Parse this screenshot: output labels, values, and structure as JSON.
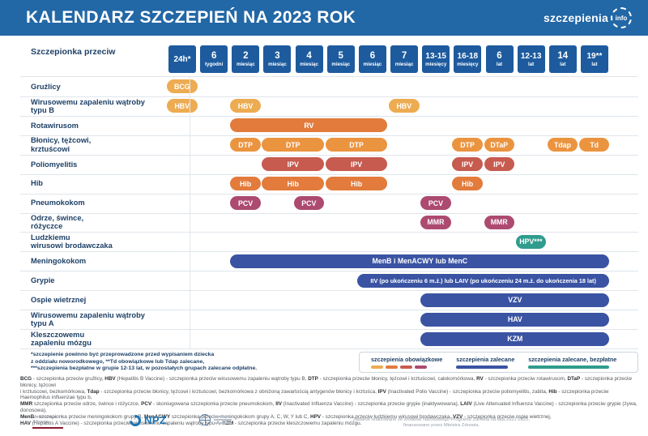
{
  "header": {
    "title": "KALENDARZ SZCZEPIEŃ NA 2023 ROK",
    "logo_text": "szczepienia",
    "logo_badge": "info"
  },
  "colors": {
    "header_bar": "#2267A6",
    "header_box": "#1D5B9E",
    "label_navy": "#1D4066",
    "amber": "#EDAB52",
    "dtp_orange": "#EB9440",
    "orange": "#E27B3B",
    "brick": "#C75B50",
    "plum": "#AC4A70",
    "blue": "#3A53A3",
    "teal": "#2F9C8D"
  },
  "table": {
    "corner": {
      "line1": "Szczepionka",
      "line2": "przeciw"
    },
    "columns": [
      {
        "num": "24h*",
        "unit": ""
      },
      {
        "num": "6",
        "unit": "tygodni"
      },
      {
        "num": "2",
        "unit": "miesiąc"
      },
      {
        "num": "3",
        "unit": "miesiąc"
      },
      {
        "num": "4",
        "unit": "miesiąc"
      },
      {
        "num": "5",
        "unit": "miesiąc"
      },
      {
        "num": "6",
        "unit": "miesiąc"
      },
      {
        "num": "7",
        "unit": "miesiąc"
      },
      {
        "num": "13-15",
        "unit": "miesięcy"
      },
      {
        "num": "16-18",
        "unit": "miesięcy"
      },
      {
        "num": "6",
        "unit": "lat"
      },
      {
        "num": "12-13",
        "unit": "lat"
      },
      {
        "num": "14",
        "unit": "lat"
      },
      {
        "num": "19**",
        "unit": "lat"
      }
    ],
    "rows": [
      {
        "label": [
          "Gruźlicy"
        ],
        "pills": [
          {
            "text": "BCG",
            "col": 0,
            "span": 1,
            "color": "amber"
          }
        ]
      },
      {
        "label": [
          "Wirusowemu zapaleniu wątroby",
          "typu B"
        ],
        "pills": [
          {
            "text": "HBV",
            "col": 0,
            "span": 1,
            "color": "amber"
          },
          {
            "text": "HBV",
            "col": 2,
            "span": 1,
            "color": "amber"
          },
          {
            "text": "HBV",
            "col": 7,
            "span": 1,
            "color": "amber"
          }
        ]
      },
      {
        "label": [
          "Rotawirusom"
        ],
        "pills": [
          {
            "text": "RV",
            "col": 2,
            "span": 5,
            "color": "orange"
          }
        ]
      },
      {
        "label": [
          "Błonicy, tężcowi,",
          "krztuścowi"
        ],
        "pills": [
          {
            "text": "DTP",
            "col": 2,
            "span": 1,
            "color": "dtp_orange"
          },
          {
            "text": "DTP",
            "col": 3,
            "span": 2,
            "color": "dtp_orange"
          },
          {
            "text": "DTP",
            "col": 5,
            "span": 2,
            "color": "dtp_orange"
          },
          {
            "text": "DTP",
            "col": 9,
            "span": 1,
            "color": "dtp_orange"
          },
          {
            "text": "DTaP",
            "col": 10,
            "span": 1,
            "color": "dtp_orange"
          },
          {
            "text": "Tdap",
            "col": 12,
            "span": 1,
            "color": "dtp_orange"
          },
          {
            "text": "Td",
            "col": 13,
            "span": 1,
            "color": "dtp_orange"
          }
        ]
      },
      {
        "label": [
          "Poliomyelitis"
        ],
        "pills": [
          {
            "text": "IPV",
            "col": 3,
            "span": 2,
            "color": "brick"
          },
          {
            "text": "IPV",
            "col": 5,
            "span": 2,
            "color": "brick"
          },
          {
            "text": "IPV",
            "col": 9,
            "span": 1,
            "color": "brick"
          },
          {
            "text": "IPV",
            "col": 10,
            "span": 1,
            "color": "brick"
          }
        ]
      },
      {
        "label": [
          "Hib"
        ],
        "pills": [
          {
            "text": "Hib",
            "col": 2,
            "span": 1,
            "color": "orange"
          },
          {
            "text": "Hib",
            "col": 3,
            "span": 2,
            "color": "orange"
          },
          {
            "text": "Hib",
            "col": 5,
            "span": 2,
            "color": "orange"
          },
          {
            "text": "Hib",
            "col": 9,
            "span": 1,
            "color": "orange"
          }
        ]
      },
      {
        "label": [
          "Pneumokokom"
        ],
        "pills": [
          {
            "text": "PCV",
            "col": 2,
            "span": 1,
            "color": "plum"
          },
          {
            "text": "PCV",
            "col": 4,
            "span": 1,
            "color": "plum"
          },
          {
            "text": "PCV",
            "col": 8,
            "span": 1,
            "color": "plum"
          }
        ]
      },
      {
        "label": [
          "Odrze, śwince,",
          "różyczce"
        ],
        "pills": [
          {
            "text": "MMR",
            "col": 8,
            "span": 1,
            "color": "plum"
          },
          {
            "text": "MMR",
            "col": 10,
            "span": 1,
            "color": "plum"
          }
        ]
      },
      {
        "label": [
          "Ludzkiemu",
          "wirusowi brodawczaka"
        ],
        "pills": [
          {
            "text": "HPV***",
            "col": 11,
            "span": 1,
            "color": "teal"
          }
        ]
      },
      {
        "label": [
          "Meningokokom"
        ],
        "pills": [
          {
            "text": "MenB i MenACWY lub MenC",
            "col": 2,
            "span": 12,
            "color": "blue"
          }
        ]
      },
      {
        "label": [
          "Grypie"
        ],
        "pills": [
          {
            "text": "IIV (po ukończeniu 6 m.ż.) lub LAIV (po ukończeniu 24 m.ż. do ukończenia 18 lat)",
            "col": 6,
            "span": 8,
            "color": "blue"
          }
        ]
      },
      {
        "label": [
          "Ospie wietrznej"
        ],
        "pills": [
          {
            "text": "VZV",
            "col": 8,
            "span": 6,
            "color": "blue"
          }
        ]
      },
      {
        "label": [
          "Wirusowemu zapaleniu wątroby",
          "typu A"
        ],
        "pills": [
          {
            "text": "HAV",
            "col": 8,
            "span": 6,
            "color": "blue"
          }
        ]
      },
      {
        "label": [
          "Kleszczowemu",
          "zapaleniu mózgu"
        ],
        "pills": [
          {
            "text": "KZM",
            "col": 8,
            "span": 6,
            "color": "blue"
          }
        ]
      }
    ]
  },
  "footnotes": [
    "*szczepienie powinno być przeprowadzone przed wypisaniem dziecka",
    "z oddziału noworodkowego, **Td obowiązkowe lub Tdap zalecane,",
    "***szczepienia bezpłatne w grupie 12-13 lat, w pozostałych grupach zalecane odpłatne."
  ],
  "legend": {
    "groups": [
      {
        "label": "szczepienia obowiązkowe",
        "swatch_colors": [
          "amber",
          "orange",
          "brick",
          "plum"
        ],
        "swatch_width": 15
      },
      {
        "label": "szczepienia zalecane",
        "swatch_colors": [
          "blue"
        ],
        "swatch_width": 64
      },
      {
        "label": "szczepienia zalecane, bezpłatne",
        "swatch_colors": [
          "teal"
        ],
        "swatch_width": 100
      }
    ]
  },
  "abbreviations": [
    [
      {
        "t": "BCG",
        "b": 1
      },
      {
        "t": " - szczepionka przeciw gruźlicy,  ",
        "b": 0
      },
      {
        "t": "HBV",
        "b": 1
      },
      {
        "t": " (Hepatitis B Vaccine) - szczepionka przeciw wirusowemu zapaleniu wątroby typu B,  ",
        "b": 0
      },
      {
        "t": "DTP",
        "b": 1
      },
      {
        "t": " - szczepionka przeciw błonicy, tężcowi i krztuścowi, całokomórkowa,  ",
        "b": 0
      },
      {
        "t": "RV",
        "b": 1
      },
      {
        "t": " - szczepionka przeciw rotawirusom,  ",
        "b": 0
      },
      {
        "t": "DTaP",
        "b": 1
      },
      {
        "t": " - szczepionka przeciw błonicy, tężcowi",
        "b": 0
      }
    ],
    [
      {
        "t": "i krztuścowi, bezkomórkowa,  ",
        "b": 0
      },
      {
        "t": "Tdap",
        "b": 1
      },
      {
        "t": " - szczepionka przeciw błonicy, tężcowi i krztuścowi, bezkomórkowa z obniżoną zawartością antygenów błonicy i krztuśca,  ",
        "b": 0
      },
      {
        "t": "IPV",
        "b": 1
      },
      {
        "t": " (Inactivated Polio Vaccine) - szczepionka przeciw poliomyelitis, zabita,  ",
        "b": 0
      },
      {
        "t": "Hib",
        "b": 1
      },
      {
        "t": " - szczepionka przeciw Haemophilus influenzae typu b,",
        "b": 0
      }
    ],
    [
      {
        "t": "MMR",
        "b": 1
      },
      {
        "t": " szczepionka przeciw odrze, śwince i różyczce,  ",
        "b": 0
      },
      {
        "t": "PCV",
        "b": 1
      },
      {
        "t": " - skoniugowana szczepionka przeciw pneumokokom,  ",
        "b": 0
      },
      {
        "t": "IIV",
        "b": 1
      },
      {
        "t": " (Inactivated Influenza Vaccine) - szczepionka przeciw grypie (inaktywowana),  ",
        "b": 0
      },
      {
        "t": "LAIV",
        "b": 1
      },
      {
        "t": " (Live Attenuated Influenza Vaccine) - szczepionka przeciw grypie (żywa, donosowa),",
        "b": 0
      }
    ],
    [
      {
        "t": "MenB",
        "b": 1
      },
      {
        "t": " - szczepionka przeciw meningokokom grupy B, ",
        "b": 0
      },
      {
        "t": "MenACWY",
        "b": 1
      },
      {
        "t": " szczepionka przeciw meningokokom grupy A, C, W, Y lub C,  ",
        "b": 0
      },
      {
        "t": "HPV",
        "b": 1
      },
      {
        "t": " - szczepionka przeciw ludzkiemu wirusowi brodawczaka, ",
        "b": 0
      },
      {
        "t": "VZV",
        "b": 1
      },
      {
        "t": " - szczepionka przeciw ospie wietrznej,",
        "b": 0
      }
    ],
    [
      {
        "t": "HAV",
        "b": 1
      },
      {
        "t": " (Hepatitis A Vaccine) - szczepionka przeciw wirusowemu zapaleniu wątroby typu A,  ",
        "b": 0
      },
      {
        "t": "KZM",
        "b": 1
      },
      {
        "t": " - szczepionka przeciw kleszczowemu zapaleniu mózgu.",
        "b": 0
      }
    ]
  ],
  "footer": {
    "ministry": [
      "Ministerstwo",
      "Zdrowia"
    ],
    "npz": "NPZ",
    "funding": [
      "Zadanie realizowane ze środków Narodowego Programu Zdrowia na lata 2021-2025,",
      "finansowane przez Ministra Zdrowia."
    ]
  }
}
